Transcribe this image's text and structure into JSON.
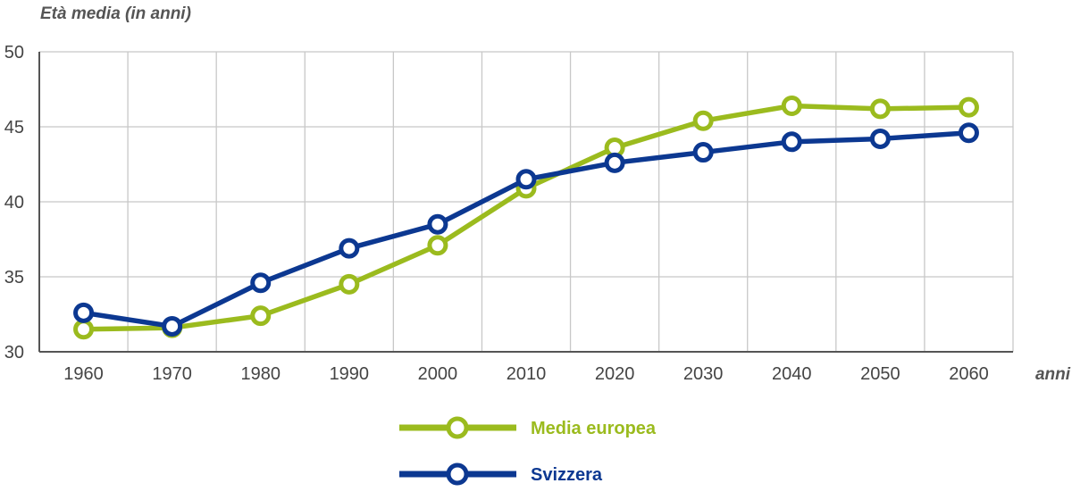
{
  "chart_data": {
    "type": "line",
    "ylabel": "Età media (in anni)",
    "xlabel": "anni",
    "x": [
      1960,
      1970,
      1980,
      1990,
      2000,
      2010,
      2020,
      2030,
      2040,
      2050,
      2060
    ],
    "xlim": [
      1955,
      2065
    ],
    "ylim": [
      30,
      50
    ],
    "yticks": [
      30,
      35,
      40,
      45,
      50
    ],
    "grid": true,
    "legend_position": "bottom",
    "series": [
      {
        "name": "Media europea",
        "color": "#9bbb1e",
        "values": [
          31.5,
          31.6,
          32.4,
          34.5,
          37.1,
          40.9,
          43.6,
          45.4,
          46.4,
          46.2,
          46.3
        ]
      },
      {
        "name": "Svizzera",
        "color": "#0c3891",
        "values": [
          32.6,
          31.7,
          34.6,
          36.9,
          38.5,
          41.5,
          42.6,
          43.3,
          44.0,
          44.2,
          44.6
        ]
      }
    ]
  }
}
